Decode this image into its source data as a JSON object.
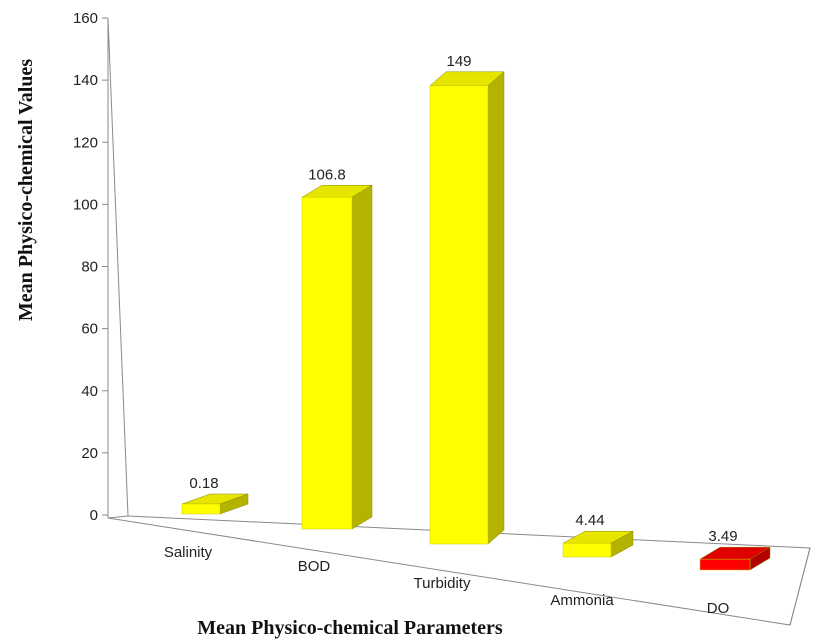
{
  "chart_data": {
    "type": "bar",
    "title": "",
    "xlabel": "Mean Physico-chemical Parameters",
    "ylabel": "Mean Physico-chemical Values",
    "ylim": [
      0,
      160
    ],
    "yticks": [
      0,
      20,
      40,
      60,
      80,
      100,
      120,
      140,
      160
    ],
    "grid": false,
    "categories": [
      "Salinity",
      "BOD",
      "Turbidity",
      "Ammonia",
      "DO"
    ],
    "values": [
      0.18,
      106.8,
      149,
      4.44,
      3.49
    ],
    "data_labels": [
      "0.18",
      "106.8",
      "149",
      "4.44",
      "3.49"
    ],
    "colors": {
      "default_front": "#ffff00",
      "default_side": "#b3b300",
      "default_top": "#e5e500",
      "highlight_front": "#ff0000",
      "highlight_side": "#b30000",
      "highlight_top": "#e00000"
    },
    "highlight_category": "DO"
  }
}
